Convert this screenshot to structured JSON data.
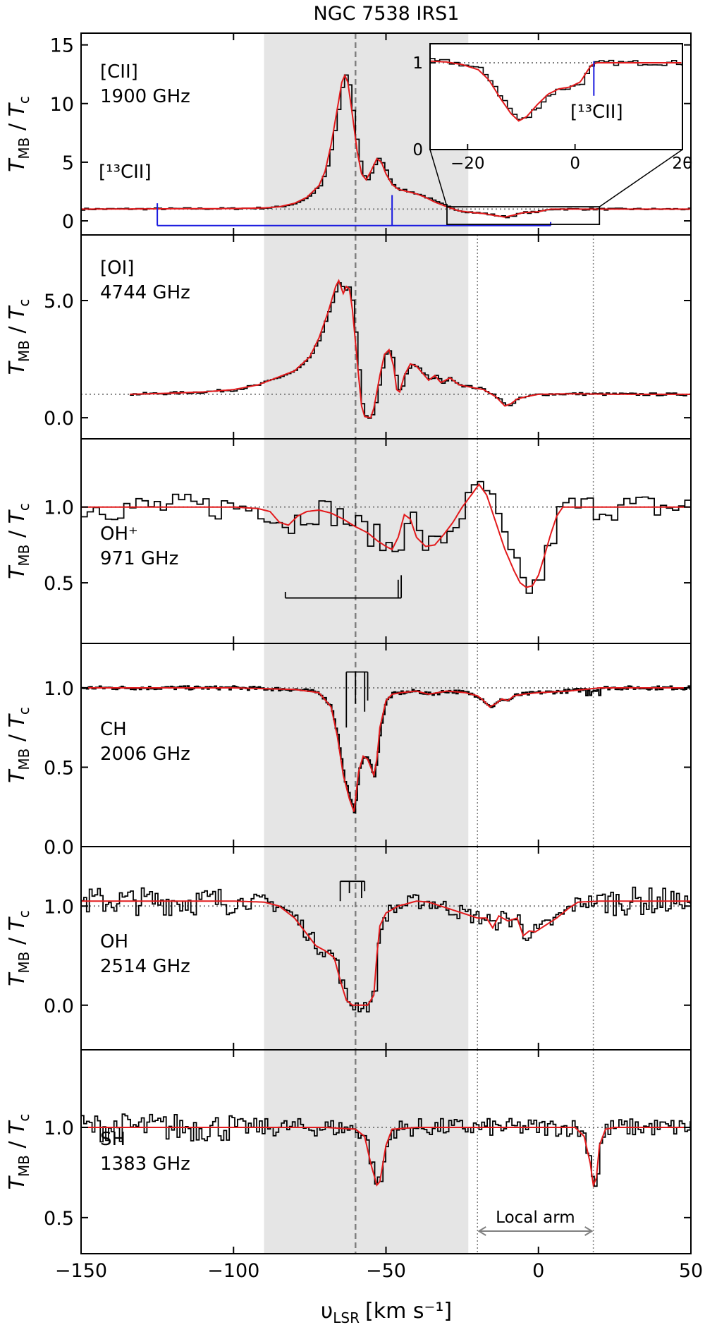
{
  "chart_data": {
    "type": "line",
    "title": "NGC 7538 IRS1",
    "xlabel": "υ",
    "xlabel_sub": "LSR",
    "xlabel_units": "[km s⁻¹]",
    "xlim": [
      -150,
      50
    ],
    "xticks": [
      -150,
      -100,
      -50,
      0,
      50
    ],
    "xtick_labels": [
      "−150",
      "−100",
      "−50",
      "0",
      "50"
    ],
    "shaded_range": [
      -90,
      -23
    ],
    "reference_velocity": -60,
    "local_arm": {
      "label": "Local arm",
      "x_range": [
        -20,
        18
      ]
    },
    "colors": {
      "data": "#000000",
      "fit": "#e31a1c",
      "isotope": "#1a1adf",
      "shade": "#e5e5e5",
      "ref_line": "#808080"
    },
    "ylabel": {
      "main": "T",
      "sub_num": "MB",
      "sep": " / ",
      "den": "T",
      "sub_den": "c"
    },
    "panels": [
      {
        "species": "[CII]",
        "freq": "1900 GHz",
        "ylim": [
          -1.2,
          16.0
        ],
        "yticks": [
          0,
          5,
          10,
          15
        ],
        "ytick_labels": [
          "0",
          "5",
          "10",
          "15"
        ],
        "unity": 1.0,
        "fit": [
          [
            -150,
            1.0
          ],
          [
            -100,
            1.05
          ],
          [
            -90,
            1.1
          ],
          [
            -85,
            1.2
          ],
          [
            -80,
            1.5
          ],
          [
            -76,
            2.0
          ],
          [
            -72,
            3.0
          ],
          [
            -70,
            4.2
          ],
          [
            -68,
            6.5
          ],
          [
            -66,
            9.5
          ],
          [
            -64.5,
            11.8
          ],
          [
            -63.5,
            12.4
          ],
          [
            -62.5,
            11.8
          ],
          [
            -61,
            9.0
          ],
          [
            -59.5,
            6.0
          ],
          [
            -58,
            4.0
          ],
          [
            -56.5,
            3.5
          ],
          [
            -55,
            4.2
          ],
          [
            -53,
            5.3
          ],
          [
            -51.5,
            5.0
          ],
          [
            -50,
            4.0
          ],
          [
            -48,
            3.1
          ],
          [
            -46,
            2.7
          ],
          [
            -43,
            2.5
          ],
          [
            -40,
            2.3
          ],
          [
            -37,
            2.0
          ],
          [
            -34,
            1.6
          ],
          [
            -30,
            1.2
          ],
          [
            -26,
            0.85
          ],
          [
            -22,
            0.72
          ],
          [
            -18,
            0.62
          ],
          [
            -14,
            0.45
          ],
          [
            -11,
            0.32
          ],
          [
            -8,
            0.5
          ],
          [
            -5,
            0.7
          ],
          [
            -2,
            0.75
          ],
          [
            0,
            0.78
          ],
          [
            2,
            0.9
          ],
          [
            4,
            1.0
          ],
          [
            10,
            1.0
          ],
          [
            20,
            1.0
          ],
          [
            50,
            1.0
          ]
        ],
        "isotope": {
          "label": "[¹³CII]",
          "comb_y": -0.4,
          "x_range": [
            -125,
            4
          ],
          "ticks": [
            [
              -125,
              1.5
            ],
            [
              -48,
              2.2
            ],
            [
              4,
              -0.1
            ]
          ]
        },
        "inset": {
          "xlim": [
            -27,
            20
          ],
          "ylim": [
            0,
            1.22
          ],
          "xticks": [
            -20,
            0,
            20
          ],
          "xtick_labels": [
            "−20",
            "0",
            "20"
          ],
          "yticks": [
            0,
            1
          ],
          "ytick_labels": [
            "0",
            "1"
          ],
          "label": "[¹³CII]",
          "marker_x": 3.5,
          "box": {
            "x": [
              -30,
              20
            ],
            "y": [
              -0.3,
              1.2
            ]
          },
          "fit": [
            [
              -27,
              1.02
            ],
            [
              -24,
              1.01
            ],
            [
              -21,
              0.98
            ],
            [
              -18,
              0.92
            ],
            [
              -16,
              0.8
            ],
            [
              -14,
              0.6
            ],
            [
              -12,
              0.42
            ],
            [
              -10.5,
              0.33
            ],
            [
              -9,
              0.38
            ],
            [
              -7,
              0.52
            ],
            [
              -5,
              0.64
            ],
            [
              -3,
              0.7
            ],
            [
              -1,
              0.72
            ],
            [
              1,
              0.78
            ],
            [
              2,
              0.88
            ],
            [
              3,
              0.97
            ],
            [
              4,
              1.0
            ],
            [
              8,
              1.0
            ],
            [
              14,
              1.0
            ],
            [
              20,
              1.0
            ]
          ]
        }
      },
      {
        "species": "[OI]",
        "freq": "4744 GHz",
        "ylim": [
          -0.9,
          7.8
        ],
        "yticks": [
          0,
          5
        ],
        "ytick_labels": [
          "0.0",
          "5.0"
        ],
        "unity": 1.0,
        "fit": [
          [
            -134,
            1.0
          ],
          [
            -120,
            1.05
          ],
          [
            -110,
            1.1
          ],
          [
            -100,
            1.2
          ],
          [
            -92,
            1.4
          ],
          [
            -86,
            1.7
          ],
          [
            -80,
            2.0
          ],
          [
            -75,
            2.6
          ],
          [
            -72,
            3.4
          ],
          [
            -69,
            4.5
          ],
          [
            -66.5,
            5.6
          ],
          [
            -65.5,
            5.85
          ],
          [
            -64,
            5.3
          ],
          [
            -63,
            5.6
          ],
          [
            -62,
            5.5
          ],
          [
            -61,
            4.6
          ],
          [
            -60,
            3.2
          ],
          [
            -59,
            1.8
          ],
          [
            -58,
            0.5
          ],
          [
            -57,
            0.05
          ],
          [
            -55,
            0.0
          ],
          [
            -54,
            0.4
          ],
          [
            -52,
            1.8
          ],
          [
            -50.5,
            2.7
          ],
          [
            -49,
            2.9
          ],
          [
            -47.5,
            2.2
          ],
          [
            -46.5,
            1.2
          ],
          [
            -45.5,
            1.1
          ],
          [
            -44,
            1.8
          ],
          [
            -42,
            2.3
          ],
          [
            -40,
            2.2
          ],
          [
            -38,
            1.9
          ],
          [
            -36,
            1.6
          ],
          [
            -34,
            1.8
          ],
          [
            -32,
            1.5
          ],
          [
            -29,
            1.7
          ],
          [
            -26,
            1.4
          ],
          [
            -22,
            1.3
          ],
          [
            -18,
            1.2
          ],
          [
            -14,
            0.9
          ],
          [
            -11,
            0.5
          ],
          [
            -9,
            0.6
          ],
          [
            -7,
            0.8
          ],
          [
            -4,
            0.9
          ],
          [
            -2,
            0.95
          ],
          [
            0,
            1.0
          ],
          [
            10,
            1.02
          ],
          [
            30,
            1.0
          ],
          [
            50,
            1.0
          ]
        ]
      },
      {
        "species": "OH⁺",
        "freq": "971 GHz",
        "ylim": [
          0.1,
          1.45
        ],
        "yticks": [
          0.5,
          1.0
        ],
        "ytick_labels": [
          "0.5",
          "1.0"
        ],
        "unity": 1.0,
        "fit": [
          [
            -150,
            1.0
          ],
          [
            -100,
            1.0
          ],
          [
            -92,
            0.99
          ],
          [
            -88,
            0.97
          ],
          [
            -85,
            0.9
          ],
          [
            -82,
            0.88
          ],
          [
            -79,
            0.94
          ],
          [
            -76,
            0.97
          ],
          [
            -72,
            0.98
          ],
          [
            -68,
            0.96
          ],
          [
            -64,
            0.92
          ],
          [
            -60,
            0.87
          ],
          [
            -56,
            0.83
          ],
          [
            -53,
            0.78
          ],
          [
            -50,
            0.74
          ],
          [
            -48,
            0.72
          ],
          [
            -46,
            0.8
          ],
          [
            -44,
            0.95
          ],
          [
            -42,
            0.92
          ],
          [
            -40,
            0.8
          ],
          [
            -37,
            0.74
          ],
          [
            -34,
            0.75
          ],
          [
            -31,
            0.82
          ],
          [
            -28,
            0.9
          ],
          [
            -25,
            1.0
          ],
          [
            -22,
            1.08
          ],
          [
            -19.5,
            1.15
          ],
          [
            -17,
            1.08
          ],
          [
            -14,
            0.9
          ],
          [
            -11,
            0.72
          ],
          [
            -8,
            0.58
          ],
          [
            -6,
            0.5
          ],
          [
            -4,
            0.47
          ],
          [
            -2,
            0.48
          ],
          [
            0,
            0.55
          ],
          [
            2,
            0.68
          ],
          [
            4,
            0.82
          ],
          [
            6,
            0.94
          ],
          [
            8,
            1.0
          ],
          [
            15,
            1.0
          ],
          [
            50,
            1.0
          ]
        ],
        "comb": {
          "y": 0.4,
          "x_range": [
            -83,
            -45
          ],
          "ticks": [
            [
              -83,
              0.44
            ],
            [
              -46,
              0.52
            ],
            [
              -45,
              0.55
            ]
          ]
        }
      },
      {
        "species": "CH",
        "freq": "2006 GHz",
        "ylim": [
          0.0,
          1.28
        ],
        "yticks": [
          0,
          0.5,
          1.0
        ],
        "ytick_labels": [
          "0.0",
          "0.5",
          "1.0"
        ],
        "unity": 1.0,
        "fit": [
          [
            -150,
            1.0
          ],
          [
            -100,
            1.0
          ],
          [
            -80,
            0.99
          ],
          [
            -72,
            0.97
          ],
          [
            -68,
            0.88
          ],
          [
            -66,
            0.7
          ],
          [
            -64,
            0.45
          ],
          [
            -62,
            0.3
          ],
          [
            -60.5,
            0.22
          ],
          [
            -60,
            0.3
          ],
          [
            -59,
            0.47
          ],
          [
            -57.5,
            0.57
          ],
          [
            -56,
            0.55
          ],
          [
            -54,
            0.45
          ],
          [
            -53,
            0.55
          ],
          [
            -52,
            0.75
          ],
          [
            -50,
            0.92
          ],
          [
            -48,
            0.96
          ],
          [
            -45,
            0.97
          ],
          [
            -40,
            0.98
          ],
          [
            -36,
            0.96
          ],
          [
            -30,
            0.98
          ],
          [
            -24,
            0.97
          ],
          [
            -20,
            0.95
          ],
          [
            -18,
            0.92
          ],
          [
            -16,
            0.88
          ],
          [
            -14,
            0.9
          ],
          [
            -12,
            0.93
          ],
          [
            -10,
            0.92
          ],
          [
            -8,
            0.95
          ],
          [
            -5,
            0.96
          ],
          [
            0,
            0.97
          ],
          [
            10,
            0.98
          ],
          [
            20,
            1.0
          ],
          [
            50,
            1.0
          ]
        ],
        "comb": {
          "y": 1.1,
          "x_range": [
            -63,
            -56
          ],
          "ticks": [
            [
              -63,
              0.75
            ],
            [
              -60,
              0.9
            ],
            [
              -57,
              0.85
            ],
            [
              -56,
              0.92
            ]
          ]
        }
      },
      {
        "species": "OH",
        "freq": "2514 GHz",
        "ylim": [
          -0.45,
          1.6
        ],
        "yticks": [
          0,
          1.0
        ],
        "ytick_labels": [
          "0.0",
          "1.0"
        ],
        "unity": 1.0,
        "fit": [
          [
            -150,
            1.05
          ],
          [
            -100,
            1.05
          ],
          [
            -90,
            1.04
          ],
          [
            -85,
            1.0
          ],
          [
            -80,
            0.88
          ],
          [
            -76,
            0.72
          ],
          [
            -73,
            0.6
          ],
          [
            -70,
            0.55
          ],
          [
            -67,
            0.48
          ],
          [
            -65,
            0.25
          ],
          [
            -63,
            0.05
          ],
          [
            -61,
            0.0
          ],
          [
            -58,
            0.0
          ],
          [
            -56,
            0.0
          ],
          [
            -54,
            0.1
          ],
          [
            -53,
            0.5
          ],
          [
            -52,
            0.8
          ],
          [
            -50,
            0.93
          ],
          [
            -46,
            1.0
          ],
          [
            -40,
            1.05
          ],
          [
            -36,
            1.04
          ],
          [
            -32,
            1.0
          ],
          [
            -28,
            0.96
          ],
          [
            -24,
            0.92
          ],
          [
            -20,
            0.88
          ],
          [
            -17,
            0.88
          ],
          [
            -15,
            0.78
          ],
          [
            -13,
            0.9
          ],
          [
            -10,
            0.85
          ],
          [
            -7,
            0.88
          ],
          [
            -5,
            0.7
          ],
          [
            -3,
            0.75
          ],
          [
            -1,
            0.74
          ],
          [
            1,
            0.78
          ],
          [
            3,
            0.82
          ],
          [
            6,
            0.88
          ],
          [
            10,
            0.98
          ],
          [
            13,
            1.04
          ],
          [
            20,
            1.05
          ],
          [
            50,
            1.05
          ]
        ],
        "comb": {
          "y": 1.25,
          "x_range": [
            -65,
            -57
          ],
          "ticks": [
            [
              -65,
              1.05
            ],
            [
              -62,
              1.13
            ],
            [
              -58,
              1.08
            ],
            [
              -57,
              1.15
            ]
          ]
        }
      },
      {
        "species": "SH",
        "freq": "1383 GHz",
        "ylim": [
          0.3,
          1.43
        ],
        "yticks": [
          0.5,
          1.0
        ],
        "ytick_labels": [
          "0.5",
          "1.0"
        ],
        "unity": 1.0,
        "fit": [
          [
            -150,
            1.0
          ],
          [
            -100,
            1.0
          ],
          [
            -70,
            1.0
          ],
          [
            -60,
            0.99
          ],
          [
            -57,
            0.95
          ],
          [
            -55,
            0.8
          ],
          [
            -53,
            0.68
          ],
          [
            -52,
            0.7
          ],
          [
            -50,
            0.9
          ],
          [
            -48,
            0.99
          ],
          [
            -40,
            1.0
          ],
          [
            0,
            1.0
          ],
          [
            12,
            1.0
          ],
          [
            15,
            0.95
          ],
          [
            17,
            0.8
          ],
          [
            18,
            0.68
          ],
          [
            19,
            0.72
          ],
          [
            20,
            0.9
          ],
          [
            22,
            0.99
          ],
          [
            25,
            1.0
          ],
          [
            50,
            1.0
          ]
        ]
      }
    ]
  }
}
